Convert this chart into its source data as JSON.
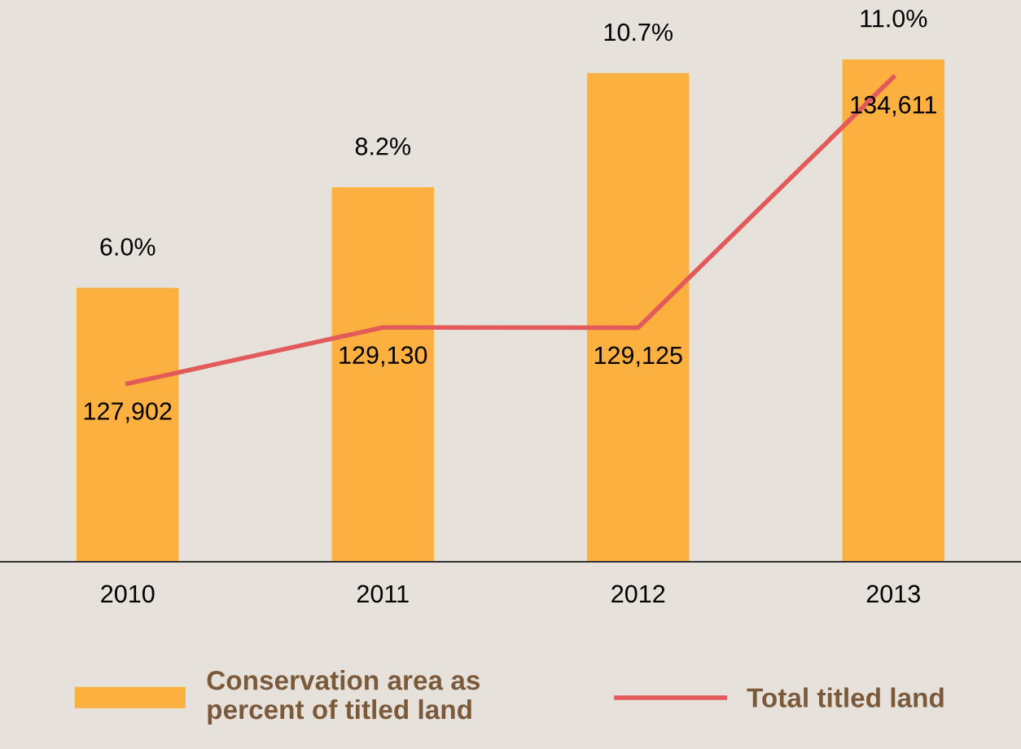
{
  "chart_data": {
    "type": "bar",
    "categories": [
      "2010",
      "2011",
      "2012",
      "2013"
    ],
    "ylim": [
      0,
      12.3
    ],
    "y2lim": [
      124000,
      136300
    ],
    "tick_labels": "x",
    "grid": false,
    "legend": "bottom",
    "data_labels": true,
    "series": [
      {
        "name": "Conservation area as\npercent of titled land",
        "color": "#fbb040",
        "values": [
          6.0,
          8.2,
          10.7,
          11.0
        ],
        "value_labels": [
          "6.0%",
          "8.2%",
          "10.7%",
          "11.0%"
        ]
      },
      {
        "name": "Total titled land",
        "type": "line",
        "axis": "y2",
        "color": "#e35a5a",
        "marker": "none",
        "line_style": "solid",
        "values": [
          127902,
          129130,
          129125,
          134611
        ],
        "value_labels": [
          "127,902",
          "129,130",
          "129,125",
          "134,611"
        ]
      }
    ]
  }
}
